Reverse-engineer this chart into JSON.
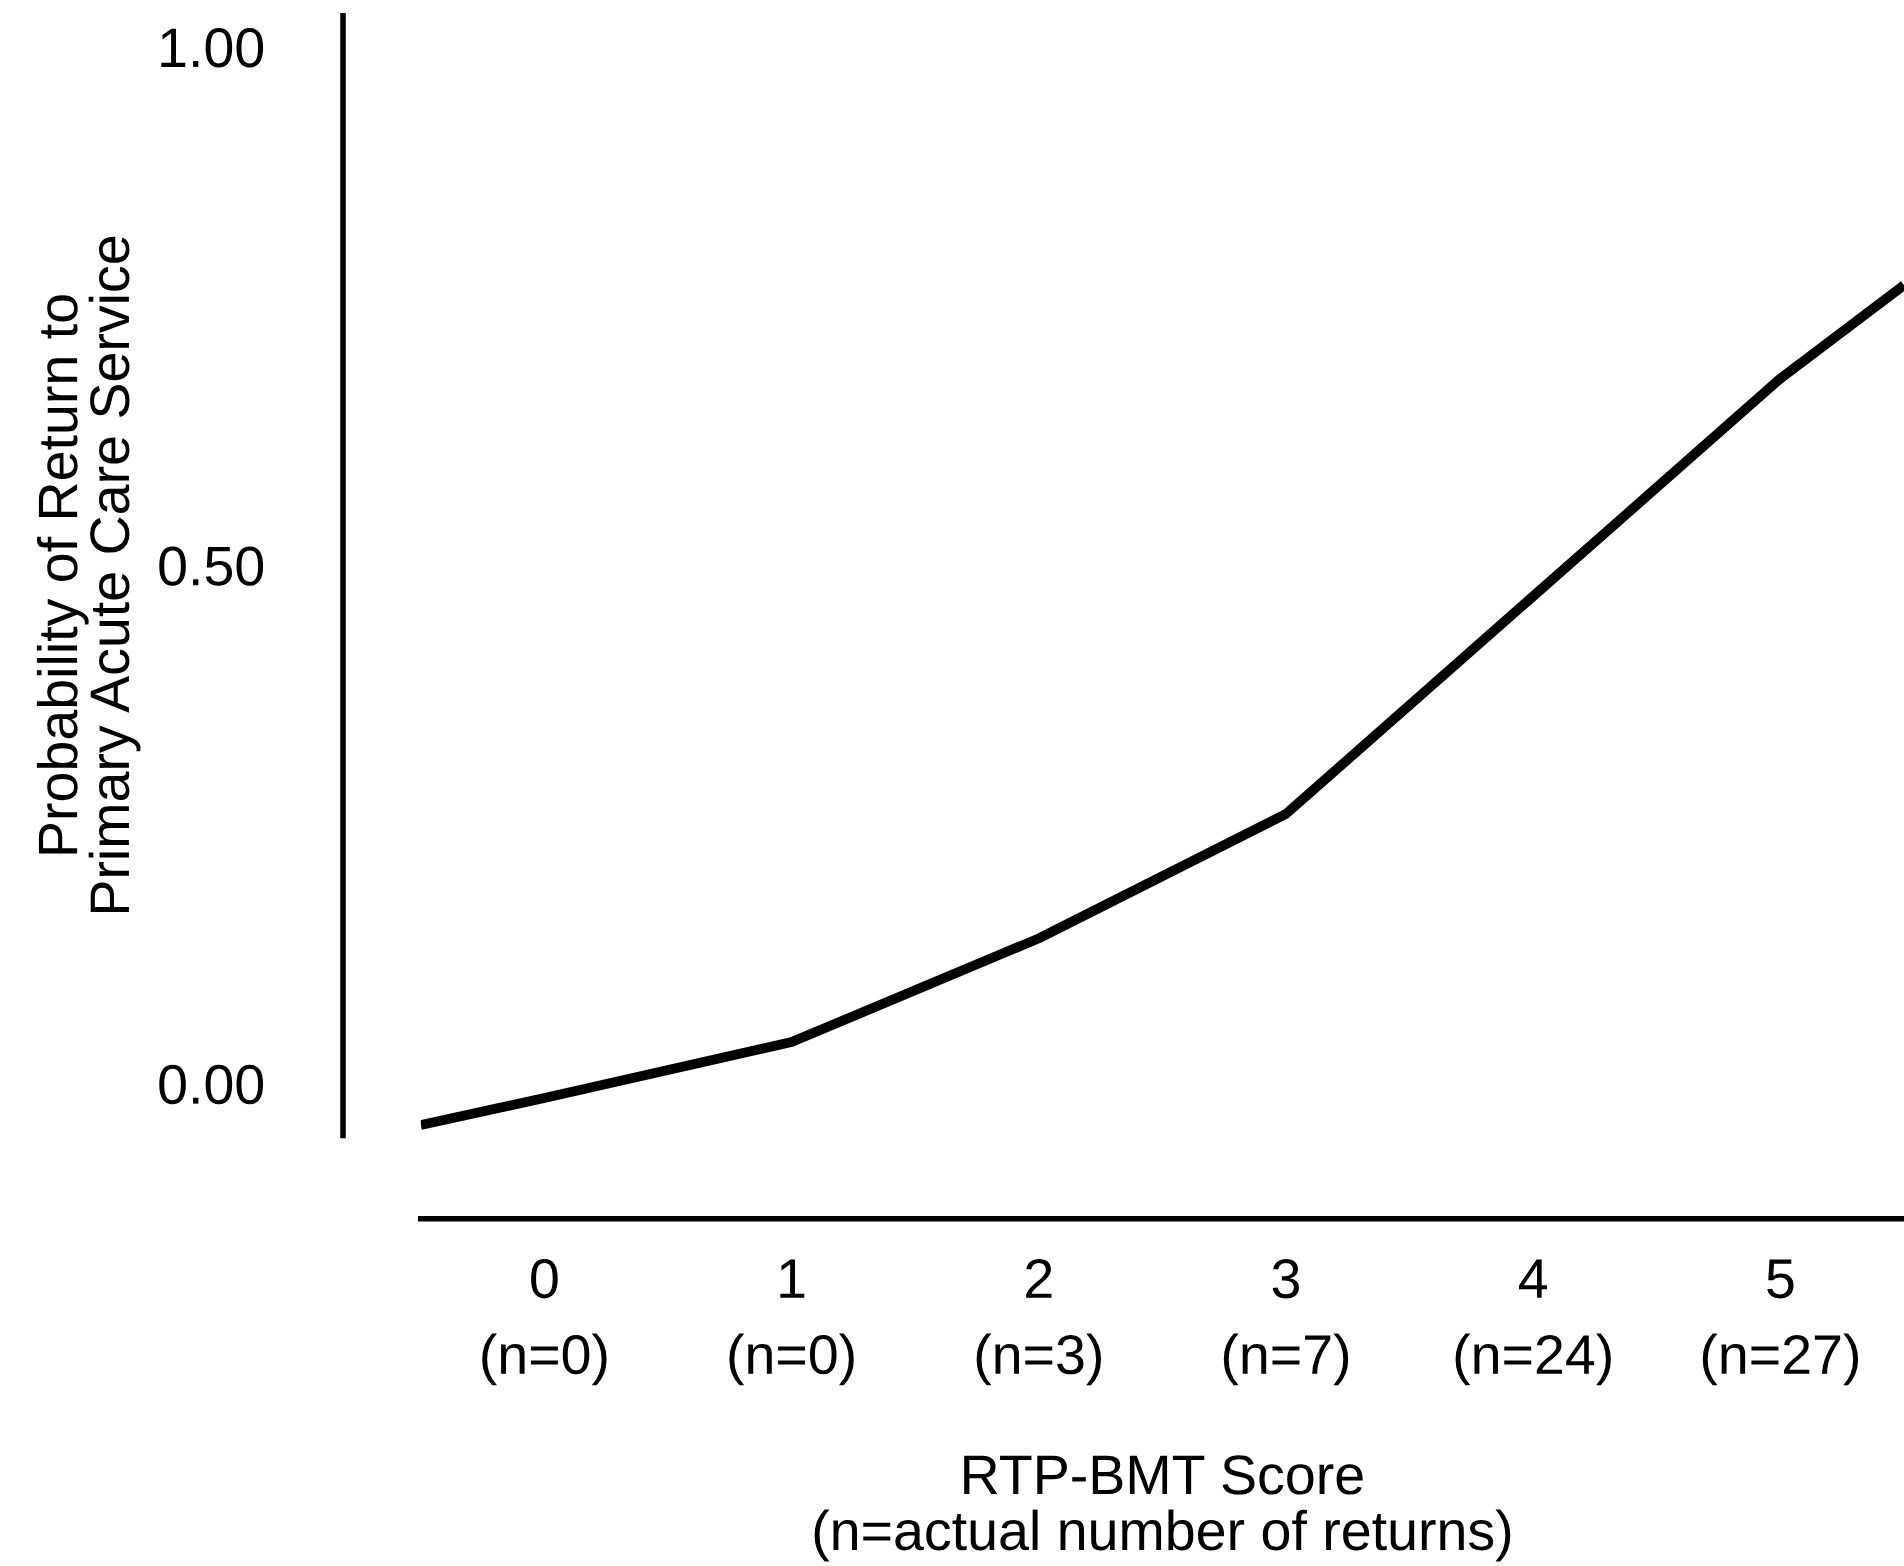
{
  "chart_data": {
    "type": "line",
    "xlabel": "RTP-BMT Score\n(n=actual number of returns)",
    "ylabel": "Probability of Return to\nPrimary Acute Care Service",
    "x": [
      -0.5,
      0,
      1,
      2,
      3,
      4,
      5,
      5.5
    ],
    "series": [
      {
        "color": "#000000",
        "values": [
          -0.04,
          -0.014,
          0.04,
          0.14,
          0.26,
          0.47,
          0.68,
          0.77
        ]
      }
    ],
    "xlim": [
      -0.5,
      5.5
    ],
    "ylim": [
      -0.05,
      1.03
    ],
    "xticks": [
      0,
      1,
      2,
      3,
      4,
      5
    ],
    "annotations": [
      "(n=0)",
      "(n=0)",
      "(n=3)",
      "(n=7)",
      "(n=24)",
      "(n=27)"
    ],
    "yticks": [
      {
        "value": 0,
        "label": "0.00"
      },
      {
        "value": 0.5,
        "label": "0.50"
      },
      {
        "value": 1,
        "label": "1.00"
      }
    ],
    "grid": false,
    "legend": false,
    "marker": "none",
    "line_style": "solid"
  }
}
